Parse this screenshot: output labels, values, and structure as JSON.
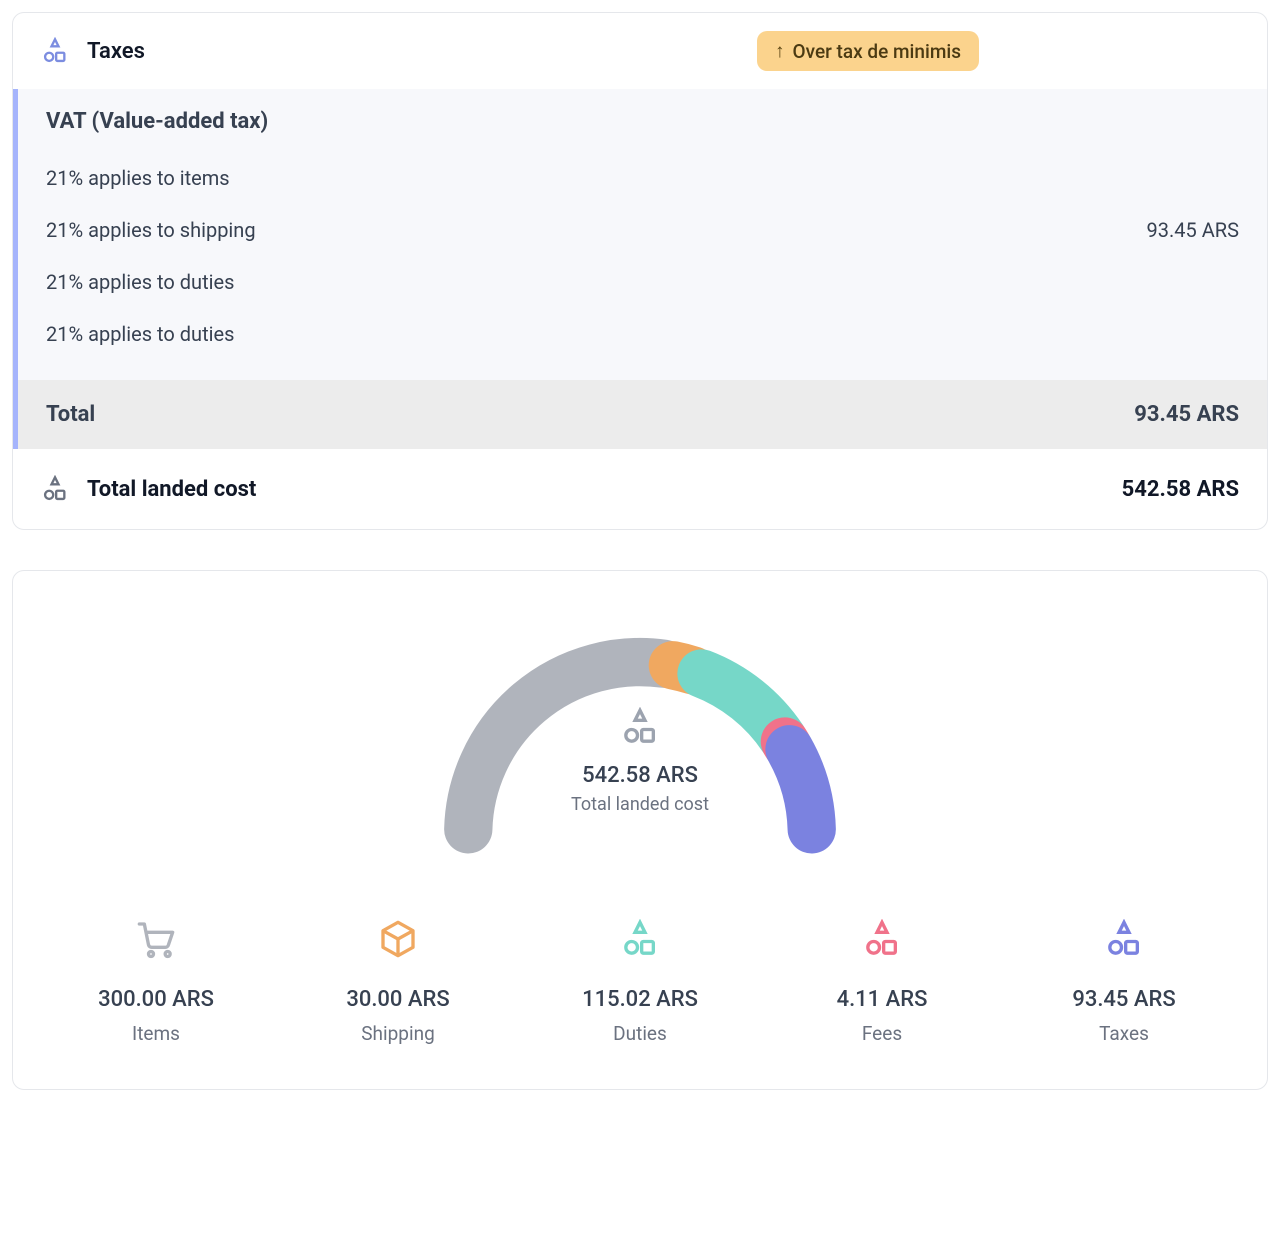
{
  "taxes": {
    "header_title": "Taxes",
    "badge_text": "Over tax de minimis",
    "vat_heading": "VAT (Value-added tax)",
    "lines": [
      {
        "text": "21% applies to items"
      },
      {
        "text": "21% applies to shipping",
        "amount": "93.45 ARS"
      },
      {
        "text": "21% applies to duties"
      },
      {
        "text": "21% applies to duties"
      }
    ],
    "total_label": "Total",
    "total_amount": "93.45 ARS",
    "landed_label": "Total landed cost",
    "landed_amount": "542.58 ARS",
    "icon_color": "#7c8de0"
  },
  "chart": {
    "type": "semi-donut",
    "total_amount": "542.58 ARS",
    "total_label": "Total landed cost",
    "stroke_width": 52,
    "gap_deg": 3,
    "background_color": "#ffffff",
    "center_icon_color": "#9ca3af",
    "segments": [
      {
        "key": "items",
        "value": 300.0,
        "color": "#b0b4bc"
      },
      {
        "key": "shipping",
        "value": 30.0,
        "color": "#f0a860"
      },
      {
        "key": "duties",
        "value": 115.02,
        "color": "#76d7c8"
      },
      {
        "key": "fees",
        "value": 4.11,
        "color": "#f0728a"
      },
      {
        "key": "taxes",
        "value": 93.45,
        "color": "#7b82e0"
      }
    ],
    "legend": [
      {
        "key": "items",
        "amount": "300.00 ARS",
        "label": "Items",
        "icon": "cart",
        "color": "#b0b4bc"
      },
      {
        "key": "shipping",
        "amount": "30.00 ARS",
        "label": "Shipping",
        "icon": "box",
        "color": "#f0a860"
      },
      {
        "key": "duties",
        "amount": "115.02 ARS",
        "label": "Duties",
        "icon": "shapes",
        "color": "#76d7c8"
      },
      {
        "key": "fees",
        "amount": "4.11 ARS",
        "label": "Fees",
        "icon": "shapes",
        "color": "#f0728a"
      },
      {
        "key": "taxes",
        "amount": "93.45 ARS",
        "label": "Taxes",
        "icon": "shapes",
        "color": "#7b82e0"
      }
    ]
  }
}
